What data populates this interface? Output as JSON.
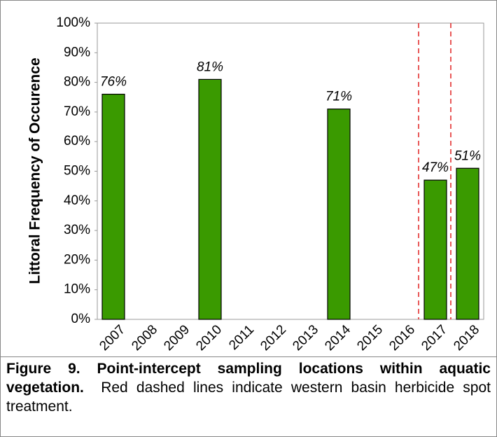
{
  "chart_data": {
    "type": "bar",
    "y_label": "Littoral Frequency of Occurence",
    "categories": [
      "2007",
      "2008",
      "2009",
      "2010",
      "2011",
      "2012",
      "2013",
      "2014",
      "2015",
      "2016",
      "2017",
      "2018"
    ],
    "values": [
      76,
      null,
      null,
      81,
      null,
      null,
      null,
      71,
      null,
      null,
      47,
      51
    ],
    "value_labels": [
      "76%",
      null,
      null,
      "81%",
      null,
      null,
      null,
      "71%",
      null,
      null,
      "47%",
      "51%"
    ],
    "color": "#3a9a00",
    "ylim": [
      0,
      100
    ],
    "yticks": [
      {
        "value": 0,
        "label": "0%"
      },
      {
        "value": 10,
        "label": "10%"
      },
      {
        "value": 20,
        "label": "20%"
      },
      {
        "value": 30,
        "label": "30%"
      },
      {
        "value": 40,
        "label": "40%"
      },
      {
        "value": 50,
        "label": "50%"
      },
      {
        "value": 60,
        "label": "60%"
      },
      {
        "value": 70,
        "label": "70%"
      },
      {
        "value": 80,
        "label": "80%"
      },
      {
        "value": 90,
        "label": "90%"
      },
      {
        "value": 100,
        "label": "100%"
      }
    ],
    "grid": false
  },
  "caption": {
    "label": "Figure 9.  Point-intercept sampling locations within aquatic vegetation.",
    "text": "Red dashed lines indicate western basin herbicide spot treatment."
  }
}
